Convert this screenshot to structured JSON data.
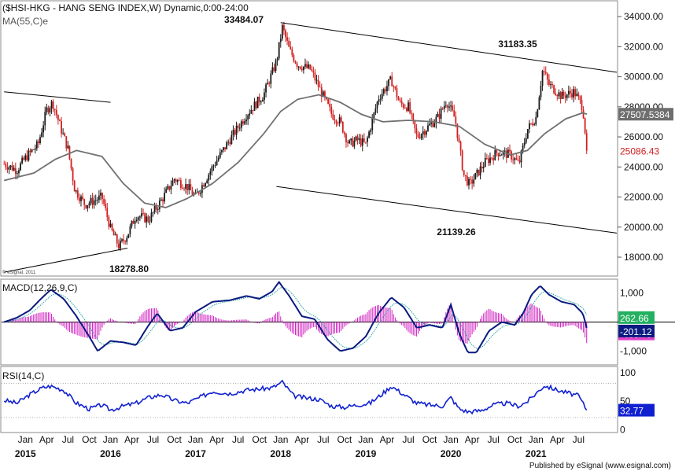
{
  "price_panel": {
    "title": "($HSI-HKG - HANG SENG INDEX,W) Dynamic,0:00-24:00",
    "ma_label": "MA(55,C)e",
    "watermark": "© eSignal, 2011",
    "last_price": "25086.43",
    "ma_value": "27507.5384",
    "annotations": [
      {
        "text": "33484.07",
        "value": 33484.07
      },
      {
        "text": "31183.35",
        "value": 31183.35
      },
      {
        "text": "21139.26",
        "value": 21139.26
      },
      {
        "text": "18278.80",
        "value": 18278.8
      }
    ]
  },
  "macd_panel": {
    "label": "MACD(12,26,9,C)",
    "values": {
      "signal": "262.66",
      "macd": "-201.12",
      "hist": "-463.79"
    }
  },
  "rsi_panel": {
    "label": "RSI(14,C)",
    "value": "32.77"
  },
  "footer": "Published by eSignal (www.esignal.com)",
  "colors": {
    "up": "#1a1a1a",
    "down": "#d02020",
    "ma": "#707070",
    "macd": "#0a1a80",
    "signal": "#20a0a0",
    "hist": "#d020c0",
    "rsi": "#1020d0",
    "channel": "#000000"
  },
  "chart_data": [
    {
      "type": "candlestick",
      "title": "($HSI-HKG - HANG SENG INDEX,W) Dynamic,0:00-24:00",
      "x_tick_labels": [
        "Jan",
        "Apr",
        "Jul",
        "Oct",
        "Jan",
        "Apr",
        "Jul",
        "Oct",
        "Jan",
        "Apr",
        "Jul",
        "Oct",
        "Jan",
        "Apr",
        "Jul",
        "Oct",
        "Jan",
        "Apr",
        "Jul",
        "Oct",
        "Jan",
        "Apr",
        "Jul",
        "Oct",
        "Jan",
        "Apr",
        "Jul"
      ],
      "x_year_labels": [
        "2015",
        "2016",
        "2017",
        "2018",
        "2019",
        "2020",
        "2021"
      ],
      "y_ticks": [
        18000,
        20000,
        22000,
        24000,
        26000,
        28000,
        30000,
        32000,
        34000
      ],
      "y_tick_labels": [
        "18000.00",
        "20000.00",
        "22000.00",
        "24000.00",
        "26000.00",
        "28000.00",
        "30000.00",
        "32000.00",
        "34000.00"
      ],
      "ylim": [
        16850,
        35000
      ],
      "series": [
        {
          "name": "Close (approx.)",
          "date": [
            2014.75,
            2014.9,
            2015.0,
            2015.15,
            2015.25,
            2015.32,
            2015.42,
            2015.5,
            2015.58,
            2015.7,
            2015.9,
            2016.0,
            2016.1,
            2016.2,
            2016.3,
            2016.45,
            2016.6,
            2016.75,
            2016.9,
            2017.0,
            2017.2,
            2017.4,
            2017.6,
            2017.8,
            2017.95,
            2018.02,
            2018.1,
            2018.2,
            2018.35,
            2018.5,
            2018.6,
            2018.7,
            2018.8,
            2018.9,
            2019.0,
            2019.15,
            2019.3,
            2019.4,
            2019.5,
            2019.6,
            2019.7,
            2019.85,
            2019.95,
            2020.05,
            2020.15,
            2020.22,
            2020.4,
            2020.55,
            2020.7,
            2020.8,
            2020.9,
            2021.0,
            2021.08,
            2021.15,
            2021.3,
            2021.45,
            2021.55,
            2021.6
          ],
          "close": [
            24200,
            23800,
            24600,
            25500,
            27800,
            28300,
            26500,
            25200,
            22500,
            21500,
            22000,
            19900,
            18700,
            19500,
            20800,
            20500,
            21800,
            23200,
            22700,
            22000,
            24000,
            25800,
            27500,
            28800,
            31000,
            33300,
            31800,
            30800,
            30500,
            28700,
            27500,
            27000,
            25500,
            25800,
            25500,
            28600,
            29800,
            28200,
            28000,
            26000,
            26500,
            27300,
            28400,
            27200,
            23500,
            22800,
            24300,
            25000,
            24800,
            24200,
            26500,
            27300,
            30500,
            29500,
            28700,
            29000,
            28000,
            25086.43
          ]
        },
        {
          "name": "MA(55,C)e",
          "date": [
            2014.75,
            2015.1,
            2015.35,
            2015.6,
            2015.9,
            2016.15,
            2016.4,
            2016.65,
            2016.9,
            2017.2,
            2017.5,
            2017.8,
            2018.0,
            2018.2,
            2018.45,
            2018.7,
            2018.95,
            2019.2,
            2019.5,
            2019.8,
            2020.1,
            2020.4,
            2020.7,
            2020.9,
            2021.1,
            2021.35,
            2021.55,
            2021.6
          ],
          "value": [
            23100,
            23600,
            24500,
            25100,
            24700,
            22900,
            21600,
            21300,
            21900,
            22900,
            24300,
            26200,
            27700,
            28500,
            28800,
            28300,
            27500,
            27000,
            27100,
            27000,
            26700,
            25500,
            24800,
            25100,
            26200,
            27200,
            27600,
            27507.5384
          ]
        }
      ],
      "channel_upper": {
        "start": {
          "date": 2018.0,
          "value": 33600
        },
        "end": {
          "date": 2021.95,
          "value": 30300
        }
      },
      "channel_lower": {
        "start": {
          "date": 2017.95,
          "value": 22700
        },
        "end": {
          "date": 2021.95,
          "value": 19600
        }
      },
      "trend_2015_upper": {
        "start": {
          "date": 2014.75,
          "value": 29000
        },
        "end": {
          "date": 2016.0,
          "value": 28300
        }
      },
      "trend_2016_lower": {
        "start": {
          "date": 2014.75,
          "value": 17000
        },
        "end": {
          "date": 2016.2,
          "value": 18600
        }
      }
    },
    {
      "type": "line",
      "title": "MACD(12,26,9,C)",
      "y_ticks": [
        -1000,
        1000
      ],
      "y_tick_labels": [
        "-1,000",
        "1,000"
      ],
      "ylim": [
        -1450,
        1450
      ],
      "series": [
        {
          "name": "MACD",
          "date": [
            2014.75,
            2014.9,
            2015.05,
            2015.2,
            2015.3,
            2015.45,
            2015.6,
            2015.75,
            2015.85,
            2016.0,
            2016.15,
            2016.3,
            2016.45,
            2016.55,
            2016.7,
            2016.85,
            2017.0,
            2017.2,
            2017.4,
            2017.6,
            2017.75,
            2017.9,
            2017.98,
            2018.1,
            2018.25,
            2018.4,
            2018.55,
            2018.7,
            2018.85,
            2019.0,
            2019.15,
            2019.3,
            2019.45,
            2019.6,
            2019.75,
            2019.9,
            2020.0,
            2020.1,
            2020.2,
            2020.3,
            2020.45,
            2020.6,
            2020.75,
            2020.85,
            2020.95,
            2021.05,
            2021.15,
            2021.3,
            2021.45,
            2021.55,
            2021.6
          ],
          "value": [
            0,
            150,
            400,
            850,
            1120,
            800,
            200,
            -500,
            -1000,
            -650,
            -700,
            -800,
            -100,
            300,
            -300,
            -200,
            350,
            700,
            750,
            900,
            800,
            1050,
            1380,
            900,
            200,
            100,
            -600,
            -1000,
            -900,
            -500,
            300,
            850,
            500,
            -200,
            -100,
            -200,
            600,
            -400,
            -1050,
            -1050,
            -300,
            0,
            -100,
            300,
            950,
            1250,
            950,
            700,
            600,
            300,
            -201.12
          ]
        },
        {
          "name": "Signal",
          "value_label": "262.66"
        },
        {
          "name": "Histogram",
          "value_label": "-463.79"
        }
      ]
    },
    {
      "type": "line",
      "title": "RSI(14,C)",
      "y_ticks": [
        0,
        50,
        100
      ],
      "y_tick_labels": [
        "0",
        "50",
        "100"
      ],
      "ylim": [
        -5,
        108
      ],
      "series": [
        {
          "name": "RSI",
          "date": [
            2014.75,
            2014.9,
            2015.05,
            2015.2,
            2015.3,
            2015.45,
            2015.6,
            2015.75,
            2015.9,
            2016.0,
            2016.15,
            2016.3,
            2016.45,
            2016.6,
            2016.75,
            2016.9,
            2017.05,
            2017.2,
            2017.4,
            2017.6,
            2017.75,
            2017.9,
            2018.02,
            2018.15,
            2018.3,
            2018.45,
            2018.6,
            2018.75,
            2018.9,
            2019.05,
            2019.2,
            2019.3,
            2019.45,
            2019.6,
            2019.75,
            2019.9,
            2020.0,
            2020.1,
            2020.2,
            2020.35,
            2020.5,
            2020.65,
            2020.8,
            2020.9,
            2021.0,
            2021.1,
            2021.25,
            2021.4,
            2021.5,
            2021.6
          ],
          "value": [
            50,
            45,
            60,
            72,
            75,
            68,
            45,
            35,
            42,
            33,
            40,
            45,
            55,
            60,
            50,
            45,
            55,
            66,
            62,
            68,
            70,
            72,
            82,
            58,
            54,
            52,
            40,
            38,
            42,
            45,
            62,
            75,
            60,
            45,
            42,
            40,
            55,
            35,
            30,
            32,
            42,
            45,
            40,
            48,
            62,
            76,
            68,
            62,
            58,
            32.77
          ]
        }
      ]
    }
  ]
}
